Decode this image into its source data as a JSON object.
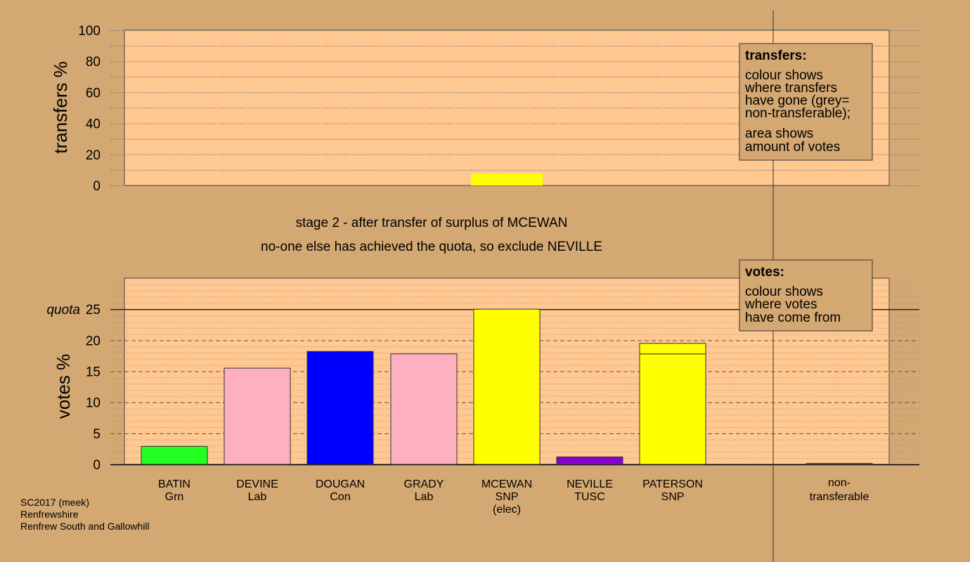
{
  "colors": {
    "page_bg": "#d4a872",
    "plot_bg": "#ffc890",
    "grn": "#22ff22",
    "lab": "#ffb0c0",
    "con": "#0000ff",
    "snp": "#ffff00",
    "tusc": "#8800cc",
    "nontransferable": "#8a6a3a"
  },
  "stage_text": {
    "line1": "stage 2 - after transfer of surplus of MCEWAN",
    "line2": "no-one else has achieved the quota, so exclude NEVILLE"
  },
  "credit": {
    "line1": "SC2017 (meek)",
    "line2": "Renfrewshire",
    "line3": "Renfrew South and Gallowhill"
  },
  "legend_transfers": {
    "title": "transfers:",
    "lines": [
      "colour shows",
      "where transfers",
      "have gone (grey=",
      "non-transferable);",
      "area shows",
      "amount of votes"
    ]
  },
  "legend_votes": {
    "title": "votes:",
    "lines": [
      "colour shows",
      "where votes",
      "have come from"
    ]
  },
  "chart_data": [
    {
      "type": "bar",
      "ylabel": "transfers %",
      "ylim": [
        0,
        100
      ],
      "yticks": [
        0,
        20,
        40,
        60,
        80,
        100
      ],
      "categories": [
        "BATIN",
        "DEVINE",
        "DOUGAN",
        "GRADY",
        "MCEWAN",
        "NEVILLE",
        "PATERSON",
        "non-transferable"
      ],
      "values": [
        0,
        0,
        0,
        0,
        0,
        0,
        7.5,
        0
      ],
      "colors": [
        "grn",
        "lab",
        "con",
        "lab",
        "snp",
        "tusc",
        "snp",
        "nontransferable"
      ],
      "offset": [
        0,
        0,
        0,
        0,
        0,
        0,
        -4,
        0
      ]
    },
    {
      "type": "bar",
      "ylabel": "votes %",
      "ylim": [
        0,
        30
      ],
      "yticks": [
        0,
        5,
        10,
        15,
        20,
        25
      ],
      "quota": {
        "label": "quota",
        "value": 25
      },
      "candidates": [
        {
          "name": "BATIN",
          "party": "Grn",
          "note": "",
          "segments": [
            {
              "value": 2.9,
              "color": "grn"
            }
          ]
        },
        {
          "name": "DEVINE",
          "party": "Lab",
          "note": "",
          "segments": [
            {
              "value": 15.5,
              "color": "lab"
            }
          ]
        },
        {
          "name": "DOUGAN",
          "party": "Con",
          "note": "",
          "segments": [
            {
              "value": 18.2,
              "color": "con"
            }
          ]
        },
        {
          "name": "GRADY",
          "party": "Lab",
          "note": "",
          "segments": [
            {
              "value": 17.8,
              "color": "lab"
            }
          ]
        },
        {
          "name": "MCEWAN",
          "party": "SNP",
          "note": "(elec)",
          "segments": [
            {
              "value": 25.0,
              "color": "snp"
            }
          ]
        },
        {
          "name": "NEVILLE",
          "party": "TUSC",
          "note": "",
          "segments": [
            {
              "value": 1.2,
              "color": "tusc"
            }
          ]
        },
        {
          "name": "PATERSON",
          "party": "SNP",
          "note": "",
          "segments": [
            {
              "value": 17.8,
              "color": "snp"
            },
            {
              "value": 1.7,
              "color": "snp"
            }
          ]
        }
      ],
      "nontransferable": {
        "label1": "non-",
        "label2": "transferable",
        "value": 0.15,
        "color": "nontransferable"
      }
    }
  ]
}
